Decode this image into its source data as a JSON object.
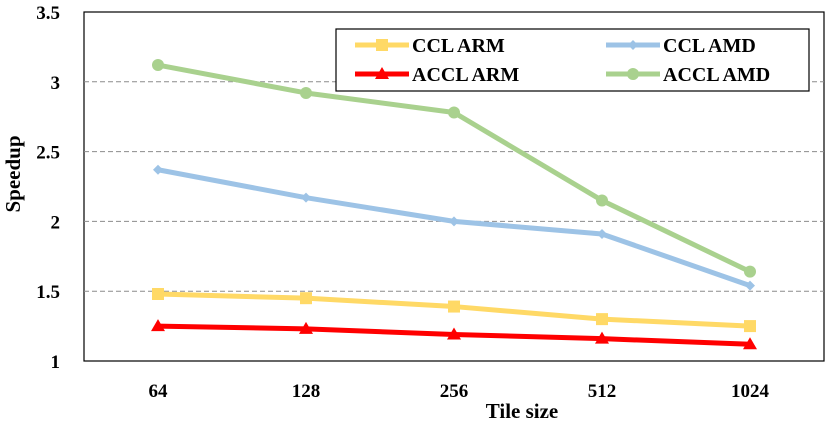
{
  "chart_data": {
    "type": "line",
    "title": "",
    "xlabel": "Tile size",
    "ylabel": "Speedup",
    "categories": [
      "64",
      "128",
      "256",
      "512",
      "1024"
    ],
    "ylim": [
      1,
      3.5
    ],
    "yticks": [
      "1",
      "1.5",
      "2",
      "2.5",
      "3",
      "3.5"
    ],
    "grid": "horizontal dashed",
    "legend_position": "top-right",
    "series": [
      {
        "name": "CCL ARM",
        "color": "#FFD966",
        "marker": "square",
        "values": [
          1.48,
          1.45,
          1.39,
          1.3,
          1.25
        ]
      },
      {
        "name": "CCL AMD",
        "color": "#9DC3E6",
        "marker": "diamond",
        "values": [
          2.37,
          2.17,
          2.0,
          1.91,
          1.54
        ]
      },
      {
        "name": "ACCL ARM",
        "color": "#FF0000",
        "marker": "triangle",
        "values": [
          1.25,
          1.23,
          1.19,
          1.16,
          1.12
        ]
      },
      {
        "name": "ACCL AMD",
        "color": "#A9D18E",
        "marker": "circle",
        "values": [
          3.12,
          2.92,
          2.78,
          2.15,
          1.64
        ]
      }
    ]
  }
}
